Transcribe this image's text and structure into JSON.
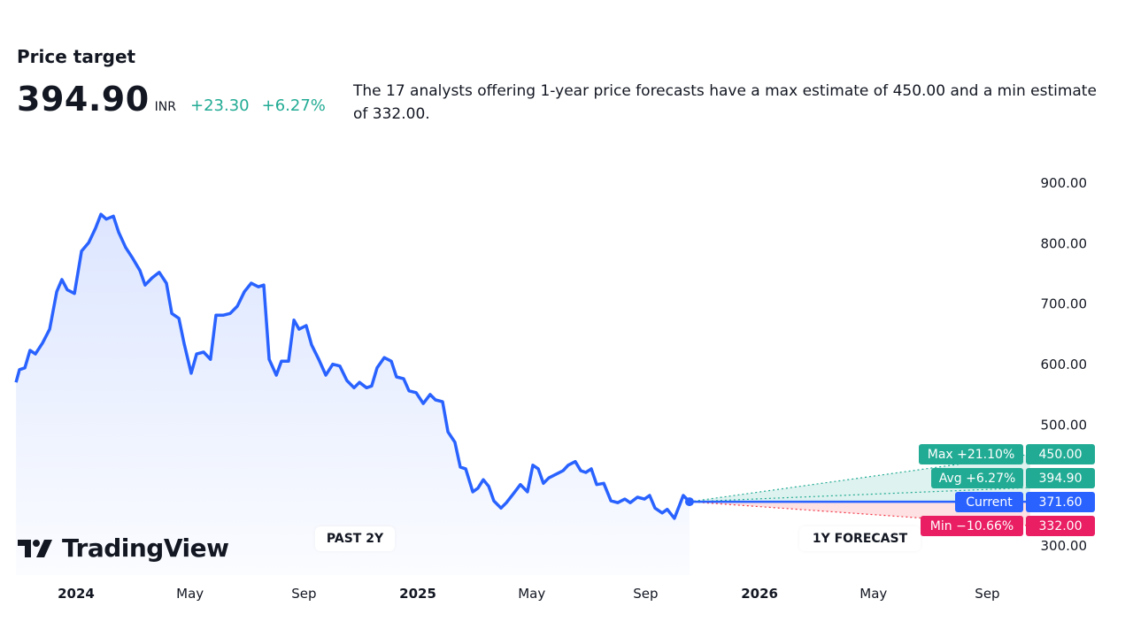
{
  "header": {
    "title": "Price target",
    "price": "394.90",
    "currency": "INR",
    "change_abs": "+23.30",
    "change_pct": "+6.27%",
    "description": "The 17 analysts offering 1-year price forecasts have a max estimate of 450.00 and a min estimate of 332.00."
  },
  "badges": {
    "past": "PAST 2Y",
    "forecast": "1Y FORECAST"
  },
  "logo": {
    "text": "TradingView"
  },
  "tags": {
    "max": {
      "label": "Max +21.10%",
      "value": "450.00"
    },
    "avg": {
      "label": "Avg +6.27%",
      "value": "394.90"
    },
    "current": {
      "label": "Current",
      "value": "371.60"
    },
    "min": {
      "label": "Min −10.66%",
      "value": "332.00"
    }
  },
  "colors": {
    "line": "#2962ff",
    "green": "#22ab94",
    "blue": "#2962ff",
    "red": "#f23645"
  },
  "chart_data": {
    "type": "line",
    "title": "Price target",
    "x_unit": "months since Jan 2024",
    "ylim": [
      300,
      900
    ],
    "y_ticks": [
      "300.00",
      "500.00",
      "600.00",
      "700.00",
      "800.00",
      "900.00"
    ],
    "y_tick_values": [
      300,
      500,
      600,
      700,
      800,
      900
    ],
    "x_ticks": [
      {
        "label": "2024",
        "t": 0,
        "bold": true
      },
      {
        "label": "May",
        "t": 4
      },
      {
        "label": "Sep",
        "t": 8
      },
      {
        "label": "2025",
        "t": 12,
        "bold": true
      },
      {
        "label": "May",
        "t": 16
      },
      {
        "label": "Sep",
        "t": 20
      },
      {
        "label": "2026",
        "t": 24,
        "bold": true
      },
      {
        "label": "May",
        "t": 28
      },
      {
        "label": "Sep",
        "t": 32
      }
    ],
    "series": [
      {
        "name": "Price",
        "t": [
          -2.11,
          -1.99,
          -1.8,
          -1.62,
          -1.43,
          -1.18,
          -0.93,
          -0.68,
          -0.5,
          -0.31,
          -0.06,
          0.19,
          0.44,
          0.68,
          0.87,
          1.06,
          1.31,
          1.49,
          1.74,
          1.99,
          2.24,
          2.42,
          2.67,
          2.92,
          3.17,
          3.36,
          3.61,
          3.79,
          4.04,
          4.23,
          4.48,
          4.72,
          4.91,
          5.16,
          5.41,
          5.66,
          5.91,
          6.15,
          6.4,
          6.59,
          6.78,
          7.03,
          7.21,
          7.46,
          7.65,
          7.83,
          8.08,
          8.27,
          8.52,
          8.77,
          9.01,
          9.26,
          9.51,
          9.76,
          9.95,
          10.2,
          10.38,
          10.57,
          10.82,
          11.07,
          11.25,
          11.5,
          11.69,
          11.94,
          12.19,
          12.43,
          12.62,
          12.87,
          13.06,
          13.3,
          13.49,
          13.68,
          13.93,
          14.11,
          14.3,
          14.49,
          14.67,
          14.92,
          15.11,
          15.36,
          15.6,
          15.85,
          16.04,
          16.23,
          16.41,
          16.6,
          16.85,
          17.1,
          17.28,
          17.53,
          17.72,
          17.9,
          18.09,
          18.28,
          18.53,
          18.78,
          19.02,
          19.27,
          19.46,
          19.71,
          19.96,
          20.14,
          20.33,
          20.58,
          20.76,
          21.01,
          21.2,
          21.32,
          21.54
        ],
        "values": [
          569,
          590,
          593,
          622,
          616,
          634,
          657,
          719,
          739,
          722,
          716,
          786,
          800,
          824,
          847,
          839,
          844,
          818,
          792,
          774,
          754,
          730,
          742,
          751,
          733,
          683,
          675,
          634,
          584,
          616,
          619,
          607,
          680,
          680,
          683,
          695,
          719,
          733,
          727,
          730,
          607,
          581,
          604,
          604,
          672,
          657,
          663,
          631,
          607,
          581,
          599,
          596,
          572,
          560,
          569,
          560,
          563,
          593,
          610,
          604,
          578,
          575,
          555,
          552,
          534,
          549,
          540,
          537,
          487,
          470,
          429,
          426,
          388,
          394,
          408,
          397,
          373,
          361,
          370,
          385,
          400,
          388,
          432,
          426,
          402,
          411,
          417,
          423,
          432,
          438,
          423,
          420,
          426,
          400,
          402,
          373,
          370,
          376,
          370,
          379,
          376,
          382,
          361,
          353,
          359,
          344,
          367,
          382,
          371.6
        ]
      }
    ],
    "forecast": {
      "start_t": 21.54,
      "end_t": 33.5,
      "current": 371.6,
      "max": 450.0,
      "avg": 394.9,
      "min": 332.0
    }
  }
}
